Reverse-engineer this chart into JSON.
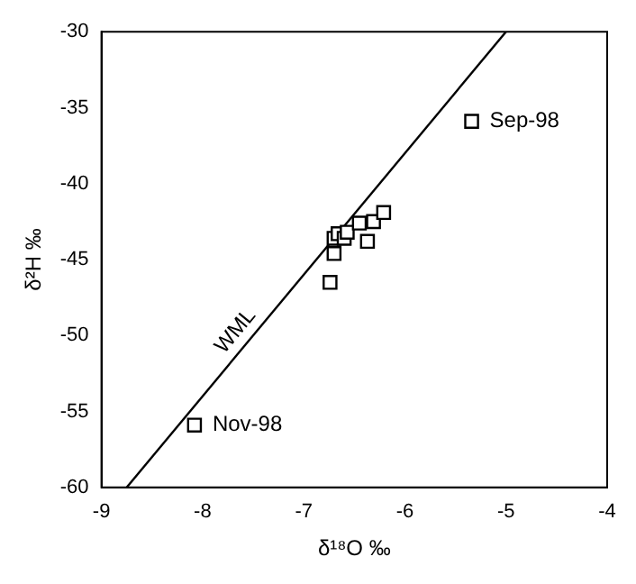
{
  "chart_data": {
    "type": "scatter",
    "xlabel": "δ¹⁸O ‰",
    "ylabel": "δ²H ‰",
    "xlim": [
      -9,
      -4
    ],
    "xticks": [
      -9,
      -8,
      -7,
      -6,
      -5,
      -4
    ],
    "ylim": [
      -60,
      -30
    ],
    "yticks": [
      -60,
      -55,
      -50,
      -45,
      -40,
      -35,
      -30
    ],
    "grid": false,
    "legend": false,
    "marker": "square",
    "series": [
      {
        "type": "scatter",
        "color": "#000000",
        "x": [
          -5.34,
          -8.08,
          -6.74,
          -6.7,
          -6.7,
          -6.66,
          -6.6,
          -6.57,
          -6.45,
          -6.37,
          -6.31,
          -6.21
        ],
        "values": [
          -35.9,
          -55.9,
          -46.5,
          -44.6,
          -43.6,
          -43.3,
          -43.6,
          -43.2,
          -42.6,
          -43.8,
          -42.5,
          -41.9
        ]
      },
      {
        "type": "line",
        "color": "#000000",
        "marker": "none",
        "x": [
          -8.75,
          -5
        ],
        "values": [
          -60,
          -30
        ]
      }
    ],
    "annotations": [
      {
        "text": "Sep-98",
        "x": -5.34,
        "y": -35.9
      },
      {
        "text": "Nov-98",
        "x": -8.08,
        "y": -55.9
      },
      "WML"
    ]
  }
}
